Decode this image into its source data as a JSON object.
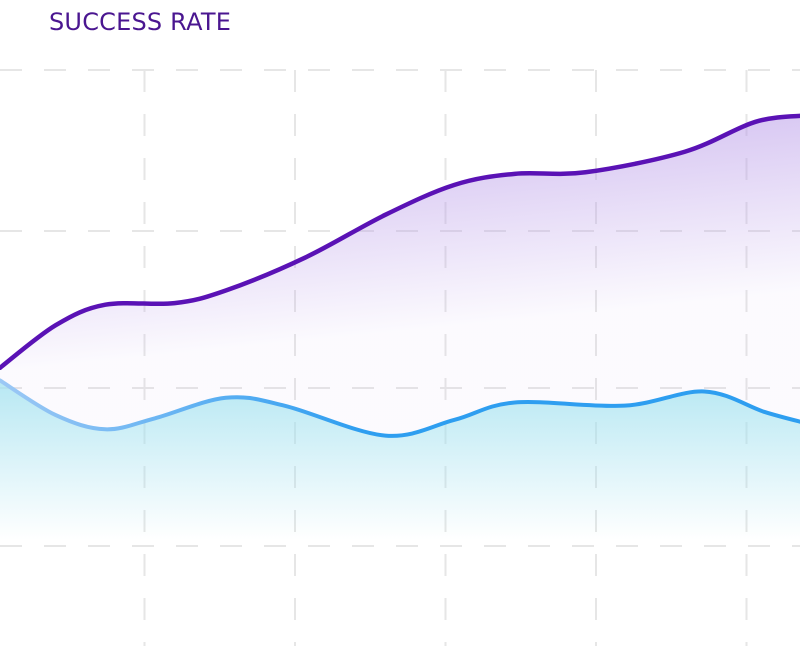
{
  "chart_data": {
    "type": "area",
    "title": "SUCCESS RATE",
    "xlabel": "",
    "ylabel": "",
    "xlim": [
      0,
      5.35
    ],
    "ylim": [
      0.37,
      4.0
    ],
    "grid": true,
    "legend": "none",
    "series": [
      {
        "color": "#5a12b5",
        "fill": "#b89ae8",
        "x": [
          0,
          0.37,
          0.7,
          1.16,
          1.5,
          2.03,
          2.56,
          3.02,
          3.42,
          3.89,
          4.55,
          5.02,
          5.35
        ],
        "y": [
          2.13,
          2.4,
          2.53,
          2.54,
          2.62,
          2.83,
          3.1,
          3.29,
          3.36,
          3.37,
          3.5,
          3.69,
          3.73
        ]
      },
      {
        "color": "#2e9ef0",
        "color_start": "#9cc8f5",
        "fill": "#9fe0ef",
        "x": [
          0,
          0.37,
          0.7,
          1.03,
          1.5,
          1.89,
          2.56,
          3.02,
          3.42,
          4.15,
          4.68,
          5.08,
          5.35
        ],
        "y": [
          2.05,
          1.83,
          1.74,
          1.81,
          1.94,
          1.89,
          1.7,
          1.8,
          1.91,
          1.89,
          1.98,
          1.85,
          1.78
        ]
      }
    ]
  }
}
